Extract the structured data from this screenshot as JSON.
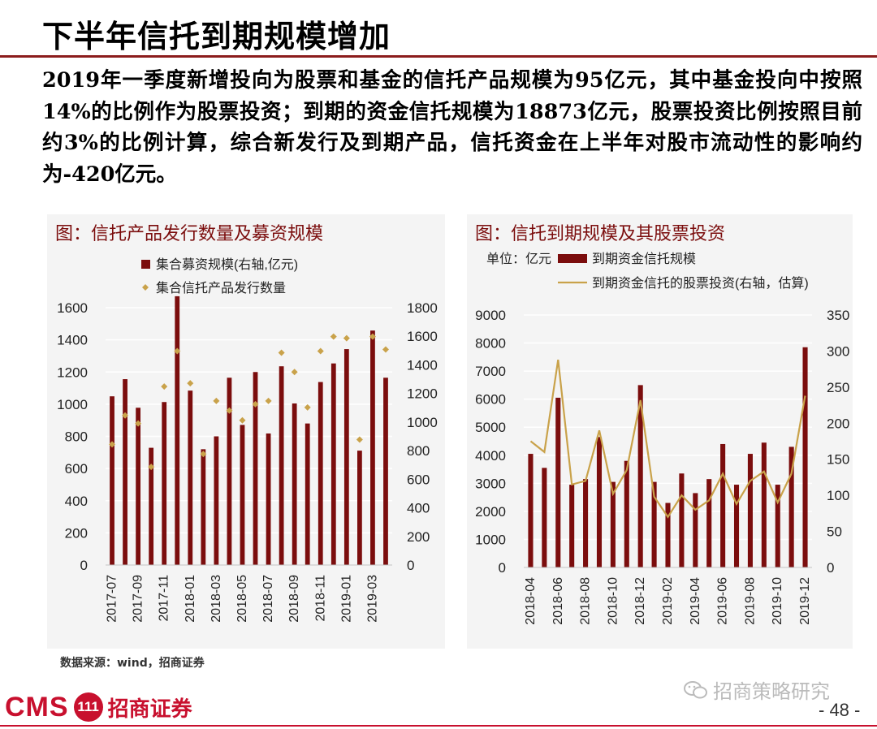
{
  "page": {
    "title": "下半年信托到期规模增加",
    "description": "2019年一季度新增投向为股票和基金的信托产品规模为95亿元，其中基金投向中按照14%的比例作为股票投资；到期的资金信托规模为18873亿元，股票投资比例按照目前约3%的比例计算，综合新发行及到期产品，信托资金在上半年对股市流动性的影响约为-420亿元。",
    "source": "数据来源：wind，招商证券",
    "logo_text_en": "CMS",
    "logo_badge": "111",
    "logo_text_cn": "招商证券",
    "watermark": "招商策略研究",
    "page_number": "- 48 -"
  },
  "colors": {
    "bar": "#7b0d0d",
    "marker": "#c9a24a",
    "line": "#c9a24a",
    "grid": "#ffffff",
    "panel_bg": "#f4f4f4",
    "title_accent": "#7b0d0d"
  },
  "chart_data": [
    {
      "id": "left",
      "type": "bar",
      "title": "图：信托产品发行数量及募资规模",
      "categories": [
        "2017-07",
        "2017-08",
        "2017-09",
        "2017-10",
        "2017-11",
        "2017-12",
        "2018-01",
        "2018-02",
        "2018-03",
        "2018-04",
        "2018-05",
        "2018-06",
        "2018-07",
        "2018-08",
        "2018-09",
        "2018-10",
        "2018-11",
        "2018-12",
        "2019-01",
        "2019-02",
        "2019-03",
        "2019-04"
      ],
      "tick_labels": [
        "2017-07",
        "2017-09",
        "2017-11",
        "2018-01",
        "2018-03",
        "2018-05",
        "2018-07",
        "2018-09",
        "2018-11",
        "2019-01",
        "2019-03"
      ],
      "series": [
        {
          "name": "集合募资规模(右轴,亿元)",
          "type": "bar",
          "axis": "right",
          "values": [
            1180,
            1300,
            1100,
            820,
            1140,
            1880,
            1220,
            810,
            900,
            1310,
            980,
            1350,
            920,
            1390,
            1130,
            990,
            1280,
            1410,
            1510,
            800,
            1640,
            1310
          ]
        },
        {
          "name": "集合信托产品发行数量",
          "type": "scatter",
          "axis": "left",
          "values": [
            750,
            930,
            880,
            610,
            1110,
            1330,
            1130,
            690,
            1020,
            960,
            900,
            1000,
            1020,
            1320,
            1200,
            980,
            1330,
            1420,
            1410,
            780,
            1420,
            1340
          ]
        }
      ],
      "y_left": {
        "min": 0,
        "max": 1600,
        "ticks": [
          0,
          200,
          400,
          600,
          800,
          1000,
          1200,
          1400,
          1600
        ]
      },
      "y_right": {
        "min": 0,
        "max": 1800,
        "ticks": [
          0,
          200,
          400,
          600,
          800,
          1000,
          1200,
          1400,
          1600,
          1800
        ]
      },
      "legend": "top-left"
    },
    {
      "id": "right",
      "type": "bar",
      "title": "图：信托到期规模及其股票投资",
      "unit_label": "单位：亿元",
      "categories": [
        "2018-04",
        "2018-05",
        "2018-06",
        "2018-07",
        "2018-08",
        "2018-09",
        "2018-10",
        "2018-11",
        "2018-12",
        "2019-01",
        "2019-02",
        "2019-03",
        "2019-04",
        "2019-05",
        "2019-06",
        "2019-07",
        "2019-08",
        "2019-09",
        "2019-10",
        "2019-11",
        "2019-12"
      ],
      "tick_labels": [
        "2018-04",
        "2018-06",
        "2018-08",
        "2018-10",
        "2018-12",
        "2019-02",
        "2019-04",
        "2019-06",
        "2019-08",
        "2019-10",
        "2019-12"
      ],
      "series": [
        {
          "name": "到期资金信托规模",
          "type": "bar",
          "axis": "left",
          "values": [
            4050,
            3550,
            6050,
            2950,
            3150,
            4650,
            3050,
            3800,
            6500,
            3050,
            2300,
            3350,
            2650,
            3150,
            4400,
            2950,
            4050,
            4450,
            2950,
            4300,
            7850
          ]
        },
        {
          "name": "到期资金信托的股票投资(右轴，估算)",
          "type": "line",
          "axis": "right",
          "values": [
            175,
            160,
            288,
            115,
            120,
            190,
            102,
            135,
            232,
            98,
            70,
            100,
            80,
            93,
            130,
            88,
            120,
            133,
            90,
            130,
            238
          ]
        }
      ],
      "y_left": {
        "min": 0,
        "max": 9000,
        "ticks": [
          0,
          1000,
          2000,
          3000,
          4000,
          5000,
          6000,
          7000,
          8000,
          9000
        ]
      },
      "y_right": {
        "min": 0,
        "max": 350,
        "ticks": [
          0,
          50,
          100,
          150,
          200,
          250,
          300,
          350
        ]
      },
      "legend": "top"
    }
  ]
}
